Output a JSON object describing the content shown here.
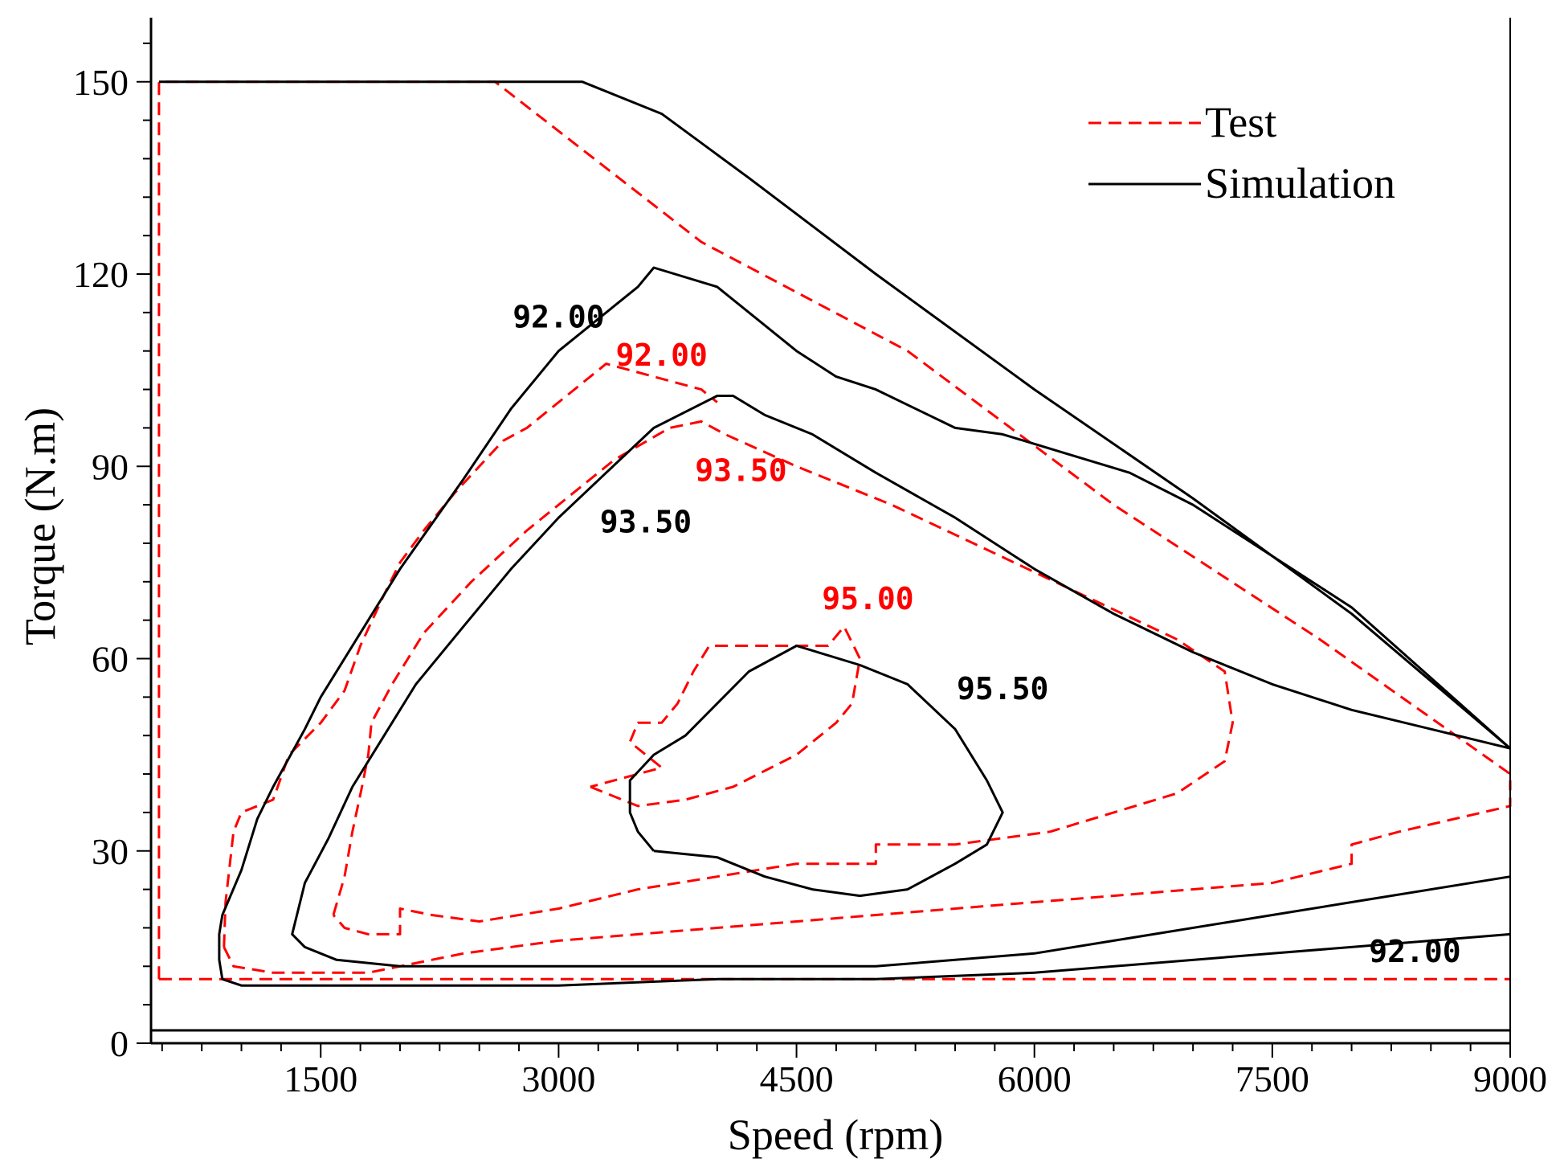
{
  "chart_data": {
    "type": "line",
    "title": "",
    "xlabel": "Speed (rpm)",
    "ylabel": "Torque (N.m)",
    "xlim": [
      430,
      9000
    ],
    "ylim": [
      0,
      160
    ],
    "x_ticks": [
      1500,
      3000,
      4500,
      6000,
      7500,
      9000
    ],
    "x_tick_labels": [
      "1500",
      "3000",
      "4500",
      "6000",
      "7500",
      "9000"
    ],
    "y_ticks": [
      0,
      30,
      60,
      90,
      120,
      150
    ],
    "y_tick_labels": [
      "0",
      "30",
      "60",
      "90",
      "120",
      "150"
    ],
    "grid": false,
    "legend_position": "top-right",
    "colors": {
      "test": "#ff0000",
      "simulation": "#000000"
    },
    "series": [
      {
        "name": "Test",
        "style": "dashed",
        "color": "#ff0000",
        "curves": [
          {
            "label": "",
            "points": [
              [
                480,
                10
              ],
              [
                480,
                150
              ],
              [
                2600,
                150
              ],
              [
                3900,
                125
              ],
              [
                5200,
                108
              ],
              [
                6500,
                84
              ],
              [
                7800,
                63
              ],
              [
                9000,
                42
              ]
            ]
          },
          {
            "label": "",
            "points": [
              [
                480,
                10
              ],
              [
                9000,
                10
              ]
            ]
          },
          {
            "label": "92.00",
            "points": [
              [
                890,
                15
              ],
              [
                950,
                12
              ],
              [
                1200,
                11
              ],
              [
                1800,
                11
              ],
              [
                2400,
                14
              ],
              [
                3000,
                16
              ],
              [
                4500,
                19
              ],
              [
                6000,
                22
              ],
              [
                7500,
                25
              ],
              [
                8000,
                28
              ],
              [
                8000,
                31
              ],
              [
                8300,
                33
              ],
              [
                9000,
                37
              ],
              [
                9000,
                41
              ]
            ]
          },
          {
            "label": "92.00",
            "points": [
              [
                890,
                15
              ],
              [
                900,
                22
              ],
              [
                950,
                33
              ],
              [
                1000,
                36
              ],
              [
                1200,
                38
              ],
              [
                1300,
                45
              ],
              [
                1500,
                50
              ],
              [
                1650,
                55
              ],
              [
                1750,
                62
              ],
              [
                1900,
                70
              ],
              [
                2000,
                75
              ],
              [
                2150,
                80
              ],
              [
                2350,
                86
              ],
              [
                2650,
                94
              ],
              [
                2800,
                96
              ],
              [
                3000,
                100
              ],
              [
                3300,
                106
              ],
              [
                3600,
                104
              ],
              [
                3900,
                102
              ],
              [
                4000,
                100
              ]
            ]
          },
          {
            "label": "93.50",
            "points": [
              [
                1580,
                20
              ],
              [
                1650,
                26
              ],
              [
                1700,
                33
              ],
              [
                1760,
                40
              ],
              [
                1800,
                45
              ],
              [
                1820,
                50
              ],
              [
                1950,
                56
              ],
              [
                2150,
                64
              ],
              [
                2450,
                72
              ],
              [
                2800,
                80
              ],
              [
                3050,
                85
              ],
              [
                3350,
                91
              ],
              [
                3700,
                96
              ],
              [
                3900,
                97
              ],
              [
                4050,
                95
              ],
              [
                4500,
                90
              ],
              [
                5100,
                84
              ],
              [
                5700,
                77
              ],
              [
                6300,
                70
              ],
              [
                6900,
                63
              ],
              [
                7200,
                58
              ],
              [
                7250,
                50
              ],
              [
                7200,
                44
              ],
              [
                6900,
                39
              ],
              [
                6500,
                36
              ],
              [
                6100,
                33
              ],
              [
                5500,
                31
              ],
              [
                5000,
                31
              ],
              [
                5000,
                28
              ],
              [
                4500,
                28
              ],
              [
                4000,
                26
              ],
              [
                3500,
                24
              ],
              [
                3000,
                21
              ],
              [
                2500,
                19
              ],
              [
                2200,
                20
              ],
              [
                2000,
                21
              ],
              [
                2000,
                17
              ],
              [
                1800,
                17
              ],
              [
                1650,
                18
              ],
              [
                1580,
                20
              ]
            ]
          },
          {
            "label": "95.00",
            "points": [
              [
                3200,
                40
              ],
              [
                3500,
                37
              ],
              [
                3800,
                38
              ],
              [
                4100,
                40
              ],
              [
                4500,
                45
              ],
              [
                4750,
                50
              ],
              [
                4850,
                53
              ],
              [
                4900,
                60
              ],
              [
                4800,
                65
              ],
              [
                4700,
                62
              ],
              [
                4400,
                62
              ],
              [
                3950,
                62
              ],
              [
                3850,
                58
              ],
              [
                3750,
                53
              ],
              [
                3650,
                50
              ],
              [
                3500,
                50
              ],
              [
                3450,
                47
              ],
              [
                3650,
                43
              ],
              [
                3200,
                40
              ]
            ]
          }
        ]
      },
      {
        "name": "Simulation",
        "style": "solid",
        "color": "#000000",
        "curves": [
          {
            "label": "",
            "points": [
              [
                480,
                150
              ],
              [
                3150,
                150
              ],
              [
                3650,
                145
              ],
              [
                4200,
                135
              ],
              [
                5000,
                120
              ],
              [
                6000,
                102
              ],
              [
                7000,
                85
              ],
              [
                8000,
                67
              ],
              [
                9000,
                46
              ]
            ]
          },
          {
            "label": "",
            "points": [
              [
                430,
                2
              ],
              [
                9000,
                2
              ]
            ]
          },
          {
            "label": "92.00",
            "points": [
              [
                9000,
                17
              ],
              [
                8500,
                16
              ],
              [
                7500,
                14
              ],
              [
                6000,
                11
              ],
              [
                5000,
                10
              ],
              [
                4000,
                10
              ],
              [
                3000,
                9
              ],
              [
                2000,
                9
              ],
              [
                1000,
                9
              ],
              [
                880,
                10
              ],
              [
                860,
                13
              ],
              [
                860,
                17
              ],
              [
                880,
                20
              ],
              [
                1000,
                27
              ],
              [
                1100,
                35
              ],
              [
                1200,
                40
              ],
              [
                1400,
                49
              ],
              [
                1500,
                54
              ],
              [
                1800,
                66
              ],
              [
                2000,
                74
              ],
              [
                2400,
                88
              ],
              [
                2700,
                99
              ],
              [
                3000,
                108
              ],
              [
                3500,
                118
              ],
              [
                3600,
                121
              ],
              [
                4000,
                118
              ],
              [
                4500,
                108
              ],
              [
                4750,
                104
              ],
              [
                5000,
                102
              ],
              [
                5500,
                96
              ],
              [
                5800,
                95
              ],
              [
                6200,
                92
              ],
              [
                6600,
                89
              ],
              [
                7000,
                84
              ],
              [
                8000,
                68
              ],
              [
                9000,
                46
              ]
            ]
          },
          {
            "label": "93.50",
            "points": [
              [
                9000,
                26
              ],
              [
                8000,
                22
              ],
              [
                7500,
                20
              ],
              [
                6500,
                16
              ],
              [
                6000,
                14
              ],
              [
                5000,
                12
              ],
              [
                4000,
                12
              ],
              [
                3000,
                12
              ],
              [
                2000,
                12
              ],
              [
                1600,
                13
              ],
              [
                1400,
                15
              ],
              [
                1320,
                17
              ],
              [
                1400,
                25
              ],
              [
                1550,
                32
              ],
              [
                1700,
                40
              ],
              [
                1900,
                48
              ],
              [
                2100,
                56
              ],
              [
                2400,
                65
              ],
              [
                2700,
                74
              ],
              [
                3000,
                82
              ],
              [
                3300,
                89
              ],
              [
                3600,
                96
              ],
              [
                4000,
                101
              ],
              [
                4100,
                101
              ],
              [
                4300,
                98
              ],
              [
                4600,
                95
              ],
              [
                5000,
                89
              ],
              [
                5500,
                82
              ],
              [
                6000,
                74
              ],
              [
                6500,
                67
              ],
              [
                7000,
                61
              ],
              [
                7500,
                56
              ],
              [
                8000,
                52
              ],
              [
                8500,
                49
              ],
              [
                9000,
                46
              ]
            ]
          },
          {
            "label": "95.50",
            "points": [
              [
                3600,
                30
              ],
              [
                4000,
                29
              ],
              [
                4300,
                26
              ],
              [
                4600,
                24
              ],
              [
                4900,
                23
              ],
              [
                5200,
                24
              ],
              [
                5500,
                28
              ],
              [
                5700,
                31
              ],
              [
                5800,
                36
              ],
              [
                5700,
                41
              ],
              [
                5500,
                49
              ],
              [
                5200,
                56
              ],
              [
                4900,
                59
              ],
              [
                4500,
                62
              ],
              [
                4200,
                58
              ],
              [
                4000,
                53
              ],
              [
                3800,
                48
              ],
              [
                3600,
                45
              ],
              [
                3450,
                41
              ],
              [
                3450,
                36
              ],
              [
                3500,
                33
              ],
              [
                3600,
                30
              ]
            ]
          }
        ]
      }
    ],
    "annotations": [
      {
        "text": "92.00",
        "x": 3000,
        "y": 113,
        "color": "#000000"
      },
      {
        "text": "92.00",
        "x": 3650,
        "y": 107,
        "color": "#ff0000"
      },
      {
        "text": "93.50",
        "x": 4150,
        "y": 89,
        "color": "#ff0000"
      },
      {
        "text": "93.50",
        "x": 3550,
        "y": 81,
        "color": "#000000"
      },
      {
        "text": "95.00",
        "x": 4950,
        "y": 69,
        "color": "#ff0000"
      },
      {
        "text": "95.50",
        "x": 5800,
        "y": 55,
        "color": "#000000"
      },
      {
        "text": "92.00",
        "x": 8400,
        "y": 14,
        "color": "#000000"
      }
    ]
  }
}
